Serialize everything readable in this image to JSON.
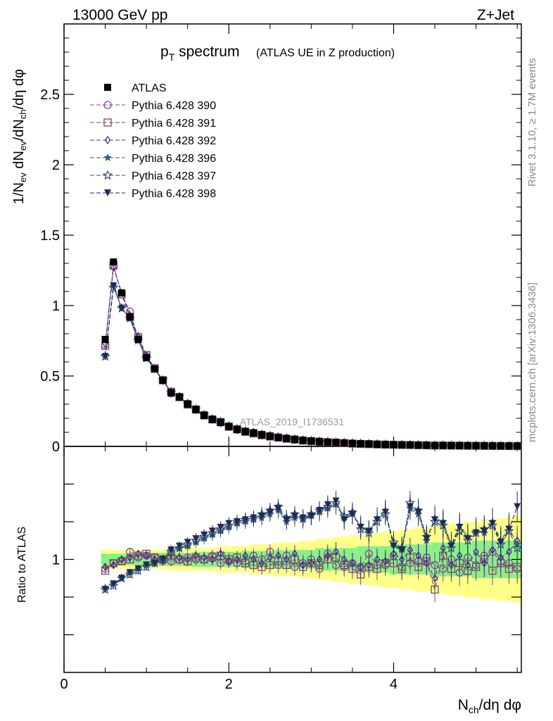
{
  "header": {
    "energy_label": "13000 GeV pp",
    "process_label": "Z+Jet",
    "title_main": "p",
    "title_sub": "T",
    "title_rest": " spectrum",
    "title_note": "(ATLAS UE in Z production)"
  },
  "side_text": {
    "rivet": "Rivet 3.1.10, ≥ 1.7M events",
    "mcplots": "mcplots.cern.ch [arXiv:1306.3436]"
  },
  "watermark": "ATLAS_2019_I1736531",
  "axes": {
    "main_ylabel": "1/N_ev dN_ev/dN_ch/dη dφ",
    "ratio_ylabel": "Ratio to ATLAS",
    "xlabel": "N_ch/dη dφ",
    "main_yticks": [
      "0",
      "0.5",
      "1",
      "1.5",
      "2",
      "2.5"
    ],
    "ratio_yticks": [
      "1"
    ],
    "xticks": [
      "0",
      "2",
      "4"
    ]
  },
  "legend": [
    {
      "label": "ATLAS",
      "marker": "square-filled",
      "color": "#000000"
    },
    {
      "label": "Pythia 6.428 390",
      "marker": "circle-open",
      "color": "#7b4d8b"
    },
    {
      "label": "Pythia 6.428 391",
      "marker": "square-open",
      "color": "#7a4a5e"
    },
    {
      "label": "Pythia 6.428 392",
      "marker": "diamond-open",
      "color": "#4b2e8a"
    },
    {
      "label": "Pythia 6.428 396",
      "marker": "star-filled",
      "color": "#3d5f7a"
    },
    {
      "label": "Pythia 6.428 397",
      "marker": "star-open",
      "color": "#2f4f6e"
    },
    {
      "label": "Pythia 6.428 398",
      "marker": "triangle-down-filled",
      "color": "#1f2a55"
    }
  ],
  "chart_data": {
    "type": "scatter",
    "title": "pT spectrum (ATLAS UE in Z production)",
    "xlabel": "N_ch/dη dφ",
    "ylabel": "1/N_ev dN_ev/dN_ch/dη dφ",
    "xlim": [
      0,
      5.55
    ],
    "ylim": [
      0,
      3.0
    ],
    "ratio_ylim": [
      0.4,
      1.6
    ],
    "x": [
      0.5,
      0.6,
      0.7,
      0.8,
      0.9,
      1.0,
      1.1,
      1.2,
      1.3,
      1.4,
      1.5,
      1.6,
      1.7,
      1.8,
      1.9,
      2.0,
      2.1,
      2.2,
      2.3,
      2.4,
      2.5,
      2.6,
      2.7,
      2.8,
      2.9,
      3.0,
      3.1,
      3.2,
      3.3,
      3.4,
      3.5,
      3.6,
      3.7,
      3.8,
      3.9,
      4.0,
      4.1,
      4.2,
      4.3,
      4.4,
      4.5,
      4.6,
      4.7,
      4.8,
      4.9,
      5.0,
      5.1,
      5.2,
      5.3,
      5.4,
      5.5
    ],
    "atlas": [
      0.76,
      1.31,
      1.09,
      0.92,
      0.76,
      0.63,
      0.55,
      0.47,
      0.38,
      0.35,
      0.3,
      0.26,
      0.22,
      0.19,
      0.17,
      0.14,
      0.12,
      0.105,
      0.095,
      0.082,
      0.072,
      0.063,
      0.056,
      0.049,
      0.043,
      0.038,
      0.034,
      0.03,
      0.027,
      0.024,
      0.021,
      0.019,
      0.017,
      0.015,
      0.013,
      0.012,
      0.011,
      0.01,
      0.009,
      0.008,
      0.007,
      0.0065,
      0.006,
      0.0055,
      0.005,
      0.0045,
      0.004,
      0.0037,
      0.0034,
      0.003,
      0.0028
    ],
    "band_green_halfwidth": [
      0.03,
      0.03,
      0.03,
      0.03,
      0.03,
      0.03,
      0.035,
      0.035,
      0.035,
      0.035,
      0.035,
      0.04,
      0.04,
      0.04,
      0.04,
      0.04,
      0.04,
      0.045,
      0.045,
      0.045,
      0.045,
      0.05,
      0.05,
      0.05,
      0.05,
      0.05,
      0.06,
      0.06,
      0.06,
      0.06,
      0.06,
      0.07,
      0.07,
      0.07,
      0.07,
      0.08,
      0.08,
      0.08,
      0.08,
      0.08,
      0.09,
      0.09,
      0.09,
      0.09,
      0.09,
      0.1,
      0.1,
      0.1,
      0.1,
      0.1,
      0.1
    ],
    "band_yellow_halfwidth": [
      0.05,
      0.05,
      0.05,
      0.05,
      0.05,
      0.05,
      0.05,
      0.05,
      0.06,
      0.06,
      0.06,
      0.06,
      0.06,
      0.06,
      0.07,
      0.07,
      0.07,
      0.07,
      0.08,
      0.08,
      0.08,
      0.09,
      0.09,
      0.09,
      0.1,
      0.1,
      0.11,
      0.11,
      0.12,
      0.12,
      0.13,
      0.13,
      0.14,
      0.14,
      0.15,
      0.15,
      0.16,
      0.16,
      0.17,
      0.17,
      0.18,
      0.18,
      0.19,
      0.19,
      0.2,
      0.2,
      0.21,
      0.21,
      0.22,
      0.22,
      0.23
    ],
    "series": [
      {
        "name": "Pythia 6.428 390",
        "ratio": [
          0.95,
          0.98,
          0.99,
          1.04,
          1.01,
          1.02,
          1.01,
          1.0,
          0.99,
          1.0,
          1.01,
          1.0,
          1.0,
          1.02,
          0.98,
          0.99,
          0.98,
          0.99,
          1.02,
          1.0,
          1.04,
          0.97,
          1.02,
          0.96,
          0.98,
          1.0,
          0.95,
          1.03,
          0.97,
          0.96,
          0.98,
          0.96,
          1.03,
          0.97,
          0.97,
          1.02,
          0.96,
          0.98,
          0.99,
          1.01,
          0.97,
          0.95,
          1.0,
          0.93,
          1.01,
          0.97,
          1.02,
          1.04,
          0.99,
          0.98,
          0.95
        ]
      },
      {
        "name": "Pythia 6.428 391",
        "ratio": [
          0.94,
          0.98,
          0.99,
          1.0,
          1.02,
          1.03,
          1.01,
          1.0,
          1.02,
          1.0,
          0.99,
          1.01,
          1.0,
          1.01,
          1.02,
          1.0,
          1.01,
          0.98,
          0.97,
          0.96,
          0.97,
          0.99,
          0.97,
          1.0,
          0.96,
          0.98,
          0.97,
          1.0,
          1.01,
          0.97,
          0.95,
          0.92,
          0.96,
          0.95,
          0.98,
          0.98,
          0.95,
          1.01,
          0.96,
          0.99,
          0.84,
          1.02,
          0.95,
          0.98,
          0.94,
          0.96,
          1.0,
          0.94,
          0.98,
          0.95,
          0.96
        ]
      },
      {
        "name": "Pythia 6.428 392",
        "ratio": [
          0.96,
          0.97,
          1.0,
          1.01,
          1.03,
          1.02,
          1.0,
          0.99,
          1.03,
          1.01,
          1.0,
          1.02,
          1.01,
          1.0,
          1.03,
          0.99,
          1.0,
          1.02,
          1.0,
          0.98,
          1.01,
          1.02,
          1.0,
          1.03,
          0.97,
          0.98,
          1.0,
          1.02,
          1.04,
          1.0,
          0.98,
          0.96,
          0.97,
          1.0,
          0.99,
          1.03,
          1.0,
          1.05,
          1.02,
          0.98,
          0.9,
          1.06,
          0.97,
          1.02,
          0.97,
          1.04,
          0.98,
          1.05,
          1.01,
          1.04,
          1.1
        ]
      },
      {
        "name": "Pythia 6.428 396",
        "ratio": [
          0.85,
          0.87,
          0.9,
          0.93,
          0.95,
          0.97,
          0.98,
          0.99,
          1.05,
          1.06,
          1.07,
          1.09,
          1.11,
          1.13,
          1.15,
          1.17,
          1.19,
          1.2,
          1.21,
          1.22,
          1.24,
          1.26,
          1.2,
          1.22,
          1.21,
          1.23,
          1.25,
          1.27,
          1.29,
          1.22,
          1.24,
          1.18,
          1.15,
          1.22,
          1.26,
          1.08,
          1.05,
          1.27,
          1.24,
          1.1,
          1.22,
          1.2,
          1.08,
          1.18,
          1.12,
          1.15,
          1.14,
          1.2,
          1.1,
          1.17,
          1.08
        ]
      },
      {
        "name": "Pythia 6.428 397",
        "ratio": [
          0.84,
          0.86,
          0.9,
          0.92,
          0.94,
          0.96,
          0.98,
          1.0,
          1.04,
          1.06,
          1.08,
          1.1,
          1.12,
          1.14,
          1.16,
          1.18,
          1.2,
          1.21,
          1.22,
          1.24,
          1.26,
          1.28,
          1.22,
          1.24,
          1.22,
          1.24,
          1.26,
          1.28,
          1.3,
          1.23,
          1.25,
          1.16,
          1.14,
          1.2,
          1.24,
          1.09,
          1.06,
          1.3,
          1.26,
          1.12,
          1.2,
          1.18,
          1.06,
          1.15,
          1.1,
          1.14,
          1.16,
          1.18,
          1.08,
          1.15,
          1.06
        ]
      },
      {
        "name": "Pythia 6.428 398",
        "ratio": [
          0.84,
          0.87,
          0.9,
          0.93,
          0.95,
          0.97,
          0.98,
          1.0,
          1.05,
          1.07,
          1.09,
          1.11,
          1.13,
          1.15,
          1.17,
          1.19,
          1.2,
          1.21,
          1.22,
          1.23,
          1.25,
          1.27,
          1.21,
          1.23,
          1.22,
          1.23,
          1.26,
          1.29,
          1.31,
          1.21,
          1.24,
          1.17,
          1.15,
          1.21,
          1.25,
          1.07,
          1.05,
          1.28,
          1.25,
          1.11,
          1.21,
          1.19,
          1.07,
          1.17,
          1.11,
          1.14,
          1.15,
          1.19,
          1.09,
          1.16,
          1.28
        ]
      }
    ]
  }
}
